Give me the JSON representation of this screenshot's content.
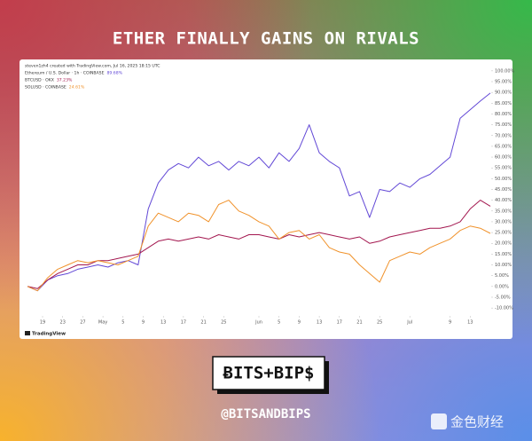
{
  "chart_data": {
    "type": "line",
    "title": "ETHER FINALLY GAINS ON RIVALS",
    "subtitle": "steven1zh4 created with TradingView.com, Jul 16, 2025 18:15 UTC",
    "x": [
      0,
      2,
      4,
      6,
      8,
      10,
      12,
      14,
      16,
      18,
      20,
      22,
      24,
      26,
      28,
      30,
      32,
      34,
      36,
      38,
      40,
      42,
      44,
      46,
      48,
      50,
      52,
      54,
      56,
      58,
      60,
      62,
      64,
      66,
      68,
      70,
      72,
      74,
      76,
      78,
      80,
      82,
      84,
      86,
      88,
      90,
      92
    ],
    "xlim": [
      0,
      92
    ],
    "xticks": [
      {
        "value": 3,
        "label": "19"
      },
      {
        "value": 7,
        "label": "23"
      },
      {
        "value": 11,
        "label": "27"
      },
      {
        "value": 15,
        "label": "May"
      },
      {
        "value": 19,
        "label": "5"
      },
      {
        "value": 23,
        "label": "9"
      },
      {
        "value": 27,
        "label": "13"
      },
      {
        "value": 31,
        "label": "17"
      },
      {
        "value": 35,
        "label": "21"
      },
      {
        "value": 39,
        "label": "25"
      },
      {
        "value": 46,
        "label": "Jun"
      },
      {
        "value": 50,
        "label": "5"
      },
      {
        "value": 54,
        "label": "9"
      },
      {
        "value": 58,
        "label": "13"
      },
      {
        "value": 62,
        "label": "17"
      },
      {
        "value": 66,
        "label": "21"
      },
      {
        "value": 70,
        "label": "25"
      },
      {
        "value": 76,
        "label": "Jul"
      },
      {
        "value": 84,
        "label": "9"
      },
      {
        "value": 88,
        "label": "13"
      }
    ],
    "ylim": [
      -12,
      102
    ],
    "yticks": [
      {
        "value": 100,
        "label": "100.00%"
      },
      {
        "value": 95,
        "label": "95.00%"
      },
      {
        "value": 90,
        "label": "90.00%"
      },
      {
        "value": 85,
        "label": "85.00%"
      },
      {
        "value": 80,
        "label": "80.00%"
      },
      {
        "value": 75,
        "label": "75.00%"
      },
      {
        "value": 70,
        "label": "70.00%"
      },
      {
        "value": 65,
        "label": "65.00%"
      },
      {
        "value": 60,
        "label": "60.00%"
      },
      {
        "value": 55,
        "label": "55.00%"
      },
      {
        "value": 50,
        "label": "50.00%"
      },
      {
        "value": 45,
        "label": "45.00%"
      },
      {
        "value": 40,
        "label": "40.00%"
      },
      {
        "value": 35,
        "label": "35.00%"
      },
      {
        "value": 30,
        "label": "30.00%"
      },
      {
        "value": 25,
        "label": "25.00%"
      },
      {
        "value": 20,
        "label": "20.00%"
      },
      {
        "value": 15,
        "label": "15.00%"
      },
      {
        "value": 10,
        "label": "10.00%"
      },
      {
        "value": 5,
        "label": "5.00%"
      },
      {
        "value": 0,
        "label": "0.00%"
      },
      {
        "value": -5,
        "label": "-5.00%"
      },
      {
        "value": -10,
        "label": "-10.00%"
      }
    ],
    "grid": false,
    "series": [
      {
        "name": "Ethereum / U.S. Dollar · 1h · COINBASE",
        "color": "#6248d6",
        "values": [
          0,
          -2,
          3,
          5,
          6,
          8,
          9,
          10,
          9,
          11,
          12,
          10,
          36,
          48,
          54,
          57,
          55,
          60,
          56,
          58,
          54,
          58,
          56,
          60,
          55,
          62,
          58,
          64,
          75,
          62,
          58,
          55,
          42,
          44,
          32,
          45,
          44,
          48,
          46,
          50,
          52,
          56,
          60,
          78,
          82,
          86,
          89.68
        ],
        "value_labels": [
          null,
          null,
          null,
          null,
          null,
          null,
          null,
          null,
          null,
          null,
          null,
          null,
          null,
          null,
          null,
          null,
          null,
          null,
          null,
          null,
          null,
          null,
          null,
          null,
          null,
          null,
          null,
          null,
          null,
          null,
          null,
          null,
          null,
          null,
          null,
          null,
          null,
          null,
          null,
          null,
          null,
          null,
          null,
          null,
          null,
          null,
          "89.68%"
        ]
      },
      {
        "name": "BTCUSD · OKX",
        "color": "#a3174f",
        "values": [
          0,
          -1,
          3,
          6,
          8,
          10,
          10,
          12,
          12,
          13,
          14,
          15,
          18,
          21,
          22,
          21,
          22,
          23,
          22,
          24,
          23,
          22,
          24,
          24,
          23,
          22,
          24,
          23,
          24,
          25,
          24,
          23,
          22,
          23,
          20,
          21,
          23,
          24,
          25,
          26,
          27,
          27,
          28,
          30,
          36,
          40,
          37.23
        ],
        "value_labels": [
          null,
          null,
          null,
          null,
          null,
          null,
          null,
          null,
          null,
          null,
          null,
          null,
          null,
          null,
          null,
          null,
          null,
          null,
          null,
          null,
          null,
          null,
          null,
          null,
          null,
          null,
          null,
          null,
          null,
          null,
          null,
          null,
          null,
          null,
          null,
          null,
          null,
          null,
          null,
          null,
          null,
          null,
          null,
          null,
          null,
          null,
          "37.23%"
        ]
      },
      {
        "name": "SOLUSD · COINBASE",
        "color": "#f0922b",
        "values": [
          0,
          -2,
          4,
          8,
          10,
          12,
          11,
          12,
          11,
          10,
          12,
          14,
          28,
          34,
          32,
          30,
          34,
          33,
          30,
          38,
          40,
          35,
          33,
          30,
          28,
          22,
          25,
          26,
          22,
          24,
          18,
          16,
          15,
          10,
          6,
          2,
          12,
          14,
          16,
          15,
          18,
          20,
          22,
          26,
          28,
          27,
          24.61
        ],
        "value_labels": [
          null,
          null,
          null,
          null,
          null,
          null,
          null,
          null,
          null,
          null,
          null,
          null,
          null,
          null,
          null,
          null,
          null,
          null,
          null,
          null,
          null,
          null,
          null,
          null,
          null,
          null,
          null,
          null,
          null,
          null,
          null,
          null,
          null,
          null,
          null,
          null,
          null,
          null,
          null,
          null,
          null,
          null,
          null,
          null,
          null,
          null,
          "24.61%"
        ]
      }
    ]
  },
  "page": {
    "source": "TradingView",
    "logo": "ɃITS+BIP$",
    "handle": "@BITSANDBIPS",
    "watermark": "金色财经"
  }
}
